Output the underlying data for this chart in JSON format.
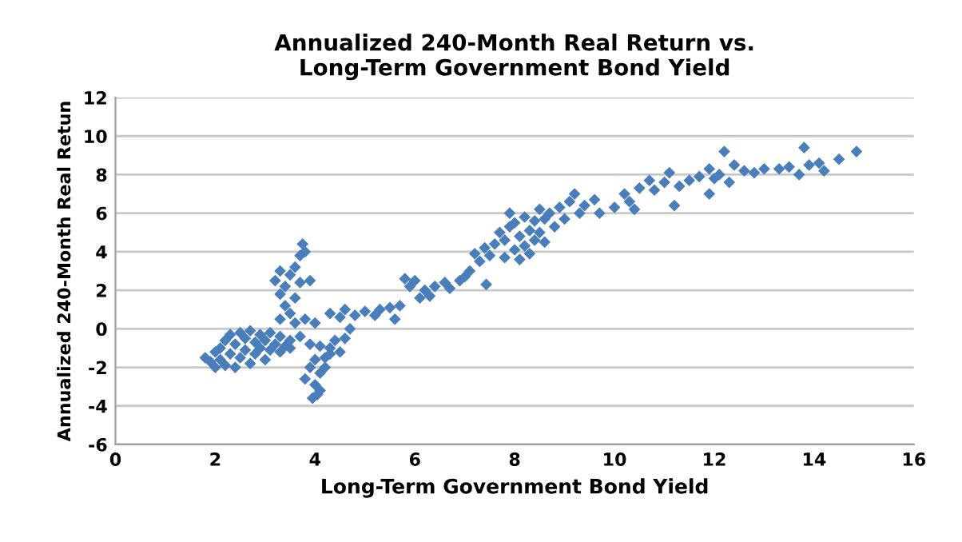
{
  "chart_data": {
    "type": "scatter",
    "title": "Annualized 240-Month Real Return vs.\nLong-Term Government Bond Yield",
    "xlabel": "Long-Term Government Bond Yield",
    "ylabel": "Annualized 240-Month Real Retun",
    "xlim": [
      0,
      16
    ],
    "xticks": [
      0,
      2,
      4,
      6,
      8,
      10,
      12,
      14,
      16
    ],
    "ylim": [
      -6,
      12
    ],
    "yticks": [
      -6,
      -4,
      -2,
      0,
      2,
      4,
      6,
      8,
      10,
      12
    ],
    "grid": "y",
    "marker": "diamond",
    "legend": false,
    "series": [
      {
        "color": "#4a7ebb",
        "x": [
          1.8,
          1.9,
          2.0,
          2.0,
          2.1,
          2.1,
          2.2,
          2.2,
          2.3,
          2.3,
          2.4,
          2.4,
          2.5,
          2.5,
          2.6,
          2.6,
          2.7,
          2.7,
          2.8,
          2.8,
          2.9,
          2.9,
          3.0,
          3.0,
          3.1,
          3.1,
          3.2,
          3.3,
          3.3,
          3.4,
          3.5,
          3.5,
          3.3,
          3.4,
          3.3,
          3.2,
          3.3,
          3.4,
          3.5,
          3.6,
          3.7,
          3.6,
          3.5,
          3.7,
          3.75,
          3.8,
          3.9,
          3.6,
          3.8,
          4.0,
          3.7,
          3.9,
          4.1,
          4.3,
          4.4,
          4.5,
          4.2,
          4.0,
          3.9,
          4.1,
          3.8,
          4.0,
          4.1,
          3.95,
          4.05,
          4.2,
          4.3,
          4.6,
          4.7,
          4.3,
          4.5,
          4.6,
          4.8,
          5.0,
          5.2,
          5.3,
          5.5,
          5.6,
          5.7,
          5.8,
          5.9,
          6.0,
          6.1,
          6.2,
          6.3,
          6.4,
          6.6,
          6.7,
          6.9,
          7.0,
          7.1,
          7.2,
          7.3,
          7.43,
          7.4,
          7.5,
          7.6,
          7.7,
          7.8,
          7.9,
          7.8,
          7.9,
          8.0,
          8.0,
          8.1,
          8.1,
          8.2,
          8.2,
          8.3,
          8.3,
          8.4,
          8.4,
          8.5,
          8.5,
          8.6,
          8.6,
          8.7,
          8.8,
          8.9,
          9.0,
          9.1,
          9.2,
          9.3,
          9.4,
          9.6,
          9.7,
          10.0,
          10.2,
          10.3,
          10.4,
          10.5,
          10.7,
          10.8,
          11.0,
          11.1,
          11.2,
          11.3,
          11.5,
          11.7,
          11.9,
          11.9,
          12.0,
          12.1,
          12.2,
          12.3,
          12.4,
          12.6,
          12.8,
          13.0,
          13.3,
          13.5,
          13.7,
          13.8,
          13.9,
          14.1,
          14.2,
          14.5,
          14.85
        ],
        "values": [
          -1.5,
          -1.7,
          -1.2,
          -2.0,
          -1.0,
          -1.6,
          -0.6,
          -1.9,
          -0.3,
          -1.3,
          -0.8,
          -2.0,
          -0.2,
          -1.5,
          -0.5,
          -1.1,
          -0.1,
          -1.8,
          -0.7,
          -1.3,
          -0.3,
          -1.0,
          -0.6,
          -1.6,
          -0.2,
          -1.1,
          -0.8,
          -0.4,
          -1.2,
          -0.9,
          -0.6,
          -1.0,
          0.5,
          1.2,
          1.8,
          2.5,
          3.0,
          2.2,
          2.8,
          3.2,
          2.4,
          1.6,
          0.8,
          3.8,
          4.4,
          4.0,
          2.5,
          0.3,
          0.5,
          0.3,
          -0.4,
          -0.8,
          -0.9,
          -1.0,
          -0.6,
          -1.2,
          -1.5,
          -1.6,
          -2.0,
          -2.3,
          -2.6,
          -2.9,
          -3.2,
          -3.6,
          -3.4,
          -2.0,
          -1.3,
          -0.5,
          0.0,
          0.8,
          0.6,
          1.0,
          0.7,
          0.9,
          0.7,
          1.0,
          1.1,
          0.5,
          1.2,
          2.6,
          2.2,
          2.5,
          1.6,
          2.0,
          1.7,
          2.2,
          2.4,
          2.1,
          2.5,
          2.7,
          3.0,
          3.9,
          3.5,
          2.3,
          4.2,
          3.8,
          4.4,
          5.0,
          4.6,
          6.0,
          3.7,
          5.3,
          4.1,
          5.5,
          3.6,
          4.8,
          5.8,
          4.3,
          5.1,
          3.9,
          5.6,
          4.6,
          6.2,
          5.0,
          4.5,
          5.7,
          6.0,
          5.3,
          6.3,
          5.7,
          6.6,
          7.0,
          6.0,
          6.4,
          6.7,
          6.0,
          6.3,
          7.0,
          6.6,
          6.2,
          7.3,
          7.7,
          7.2,
          7.6,
          8.1,
          6.4,
          7.4,
          7.7,
          7.9,
          8.3,
          7.0,
          7.8,
          8.0,
          9.2,
          7.6,
          8.5,
          8.2,
          8.1,
          8.3,
          8.3,
          8.4,
          8.0,
          9.4,
          8.5,
          8.6,
          8.2,
          8.8,
          9.2
        ]
      }
    ]
  }
}
